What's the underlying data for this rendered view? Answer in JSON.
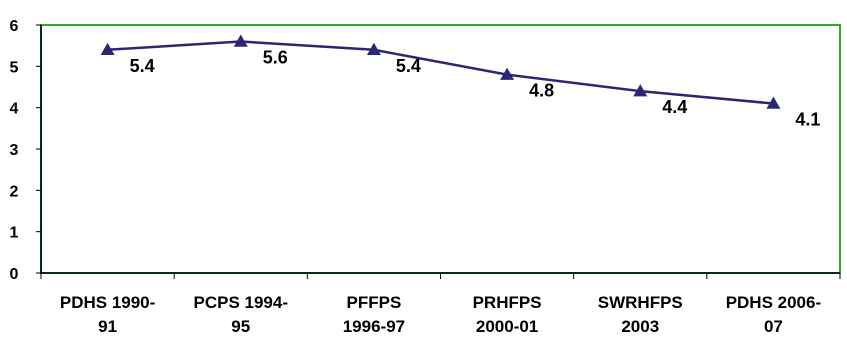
{
  "chart_data": {
    "type": "line",
    "title": "",
    "xlabel": "",
    "ylabel": "",
    "categories": [
      [
        "PDHS 1990-",
        "91"
      ],
      [
        "PCPS 1994-",
        "95"
      ],
      [
        "PFFPS",
        "1996-97"
      ],
      [
        "PRHFPS",
        "2000-01"
      ],
      [
        "SWRHFPS",
        "2003"
      ],
      [
        "PDHS 2006-",
        "07"
      ]
    ],
    "series": [
      {
        "values": [
          5.4,
          5.6,
          5.4,
          4.8,
          4.4,
          4.1
        ]
      }
    ],
    "data_labels": [
      "5.4",
      "5.6",
      "5.4",
      "4.8",
      "4.4",
      "4.1"
    ],
    "ylim": [
      0,
      6
    ],
    "yticks": [
      0,
      1,
      2,
      3,
      4,
      5,
      6
    ],
    "grid": false,
    "colors": {
      "line": "#2b2774",
      "marker": "#2b2774",
      "plot_border": "#2fa82f",
      "axis": "#000000"
    }
  }
}
